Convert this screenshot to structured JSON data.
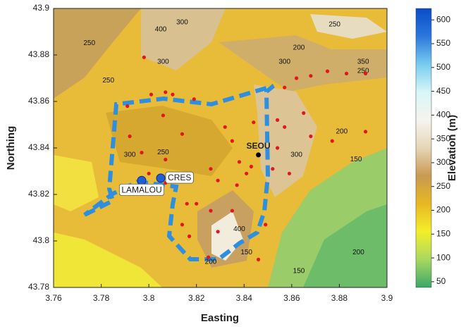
{
  "chart_data": {
    "type": "scatter",
    "xlabel": "Easting",
    "ylabel": "Northing",
    "xlim": [
      3.76,
      3.9
    ],
    "xticks": [
      3.76,
      3.78,
      3.8,
      3.82,
      3.84,
      3.86,
      3.88,
      3.9
    ],
    "ylim": [
      43.78,
      43.9
    ],
    "yticks": [
      43.78,
      43.8,
      43.82,
      43.84,
      43.86,
      43.88,
      43.9
    ],
    "color": "#e3161b",
    "x": [
      3.798,
      3.801,
      3.807,
      3.81,
      3.791,
      3.806,
      3.814,
      3.792,
      3.797,
      3.807,
      3.826,
      3.832,
      3.835,
      3.838,
      3.841,
      3.843,
      3.837,
      3.829,
      3.82,
      3.816,
      3.826,
      3.817,
      3.814,
      3.829,
      3.835,
      3.849,
      3.854,
      3.857,
      3.857,
      3.862,
      3.868,
      3.875,
      3.883,
      3.891,
      3.865,
      3.868,
      3.854,
      3.859,
      3.852,
      3.844,
      3.825,
      3.846,
      3.877,
      3.891,
      3.819,
      3.8,
      3.807
    ],
    "y": [
      43.879,
      43.863,
      43.864,
      43.863,
      43.858,
      43.854,
      43.846,
      43.845,
      43.838,
      43.835,
      43.831,
      43.849,
      43.843,
      43.834,
      43.829,
      43.832,
      43.824,
      43.826,
      43.816,
      43.816,
      43.813,
      43.802,
      43.807,
      43.804,
      43.813,
      43.807,
      43.852,
      43.849,
      43.866,
      43.87,
      43.871,
      43.873,
      43.872,
      43.872,
      43.855,
      43.845,
      43.84,
      43.829,
      43.831,
      43.851,
      43.793,
      43.792,
      43.843,
      43.847,
      43.861,
      43.829,
      43.825
    ],
    "stations": [
      {
        "label": "SEOU",
        "x": 3.846,
        "y": 43.837,
        "color": "#000000"
      },
      {
        "label": "CRES",
        "x": 3.805,
        "y": 43.827,
        "color": "#1f5fd6"
      },
      {
        "label": "LAMALOU",
        "x": 3.797,
        "y": 43.826,
        "color": "#1f5fd6"
      }
    ],
    "annotations": [
      {
        "text": "300",
        "x": 3.792,
        "y": 43.837
      },
      {
        "text": "250",
        "x": 3.806,
        "y": 43.838
      },
      {
        "text": "250",
        "x": 3.775,
        "y": 43.885
      },
      {
        "text": "400",
        "x": 3.805,
        "y": 43.891
      },
      {
        "text": "300",
        "x": 3.814,
        "y": 43.894
      },
      {
        "text": "300",
        "x": 3.806,
        "y": 43.877
      },
      {
        "text": "250",
        "x": 3.783,
        "y": 43.869
      },
      {
        "text": "200",
        "x": 3.863,
        "y": 43.883
      },
      {
        "text": "300",
        "x": 3.857,
        "y": 43.877
      },
      {
        "text": "350",
        "x": 3.89,
        "y": 43.877
      },
      {
        "text": "250",
        "x": 3.89,
        "y": 43.873
      },
      {
        "text": "250",
        "x": 3.878,
        "y": 43.893
      },
      {
        "text": "200",
        "x": 3.881,
        "y": 43.847
      },
      {
        "text": "150",
        "x": 3.887,
        "y": 43.835
      },
      {
        "text": "300",
        "x": 3.862,
        "y": 43.837
      },
      {
        "text": "400",
        "x": 3.838,
        "y": 43.805
      },
      {
        "text": "200",
        "x": 3.826,
        "y": 43.791
      },
      {
        "text": "150",
        "x": 3.841,
        "y": 43.795
      },
      {
        "text": "200",
        "x": 3.888,
        "y": 43.795
      },
      {
        "text": "150",
        "x": 3.863,
        "y": 43.787
      }
    ],
    "colorbar": {
      "label": "Elevation (m)",
      "lim": [
        38,
        624
      ],
      "ticks": [
        50,
        100,
        150,
        200,
        250,
        300,
        350,
        400,
        450,
        500,
        550,
        600
      ],
      "colors": [
        "#3aa86a",
        "#a8d860",
        "#f4ee2a",
        "#e8b822",
        "#c89a50",
        "#e6d6b8",
        "#f6f4ee",
        "#d8f6f8",
        "#78ccf0",
        "#2a78dc",
        "#0a4cc8"
      ]
    }
  }
}
